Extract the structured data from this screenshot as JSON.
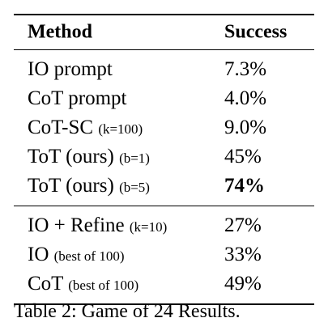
{
  "table": {
    "header": {
      "method": "Method",
      "success": "Success"
    },
    "group1": [
      {
        "method": "IO prompt",
        "note": "",
        "success": "7.3%",
        "bold": false
      },
      {
        "method": "CoT prompt",
        "note": "",
        "success": "4.0%",
        "bold": false
      },
      {
        "method": "CoT-SC",
        "note": "(k=100)",
        "success": "9.0%",
        "bold": false
      },
      {
        "method": "ToT (ours)",
        "note": "(b=1)",
        "success": "45%",
        "bold": false
      },
      {
        "method": "ToT (ours)",
        "note": "(b=5)",
        "success": "74%",
        "bold": true
      }
    ],
    "group2": [
      {
        "method": "IO + Refine",
        "note": "(k=10)",
        "success": "27%",
        "bold": false
      },
      {
        "method": "IO",
        "note": "(best of 100)",
        "success": "33%",
        "bold": false
      },
      {
        "method": "CoT",
        "note": "(best of 100)",
        "success": "49%",
        "bold": false
      }
    ]
  },
  "caption": "Table 2: Game of 24 Results."
}
